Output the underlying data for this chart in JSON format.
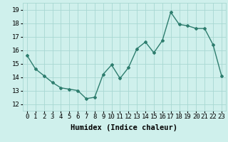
{
  "x": [
    0,
    1,
    2,
    3,
    4,
    5,
    6,
    7,
    8,
    9,
    10,
    11,
    12,
    13,
    14,
    15,
    16,
    17,
    18,
    19,
    20,
    21,
    22,
    23
  ],
  "y": [
    15.6,
    14.6,
    14.1,
    13.6,
    13.2,
    13.1,
    13.0,
    12.4,
    12.5,
    14.2,
    14.9,
    13.9,
    14.7,
    16.1,
    16.6,
    15.8,
    16.7,
    18.8,
    17.9,
    17.8,
    17.6,
    17.6,
    16.4,
    14.1
  ],
  "line_color": "#2e7d6e",
  "marker": "D",
  "marker_size": 2,
  "bg_color": "#cff0ec",
  "grid_color": "#a8d8d2",
  "xlabel": "Humidex (Indice chaleur)",
  "ylim": [
    11.5,
    19.5
  ],
  "xlim": [
    -0.5,
    23.5
  ],
  "yticks": [
    12,
    13,
    14,
    15,
    16,
    17,
    18,
    19
  ],
  "xticks": [
    0,
    1,
    2,
    3,
    4,
    5,
    6,
    7,
    8,
    9,
    10,
    11,
    12,
    13,
    14,
    15,
    16,
    17,
    18,
    19,
    20,
    21,
    22,
    23
  ],
  "xtick_labels": [
    "0",
    "1",
    "2",
    "3",
    "4",
    "5",
    "6",
    "7",
    "8",
    "9",
    "10",
    "11",
    "12",
    "13",
    "14",
    "15",
    "16",
    "17",
    "18",
    "19",
    "20",
    "21",
    "22",
    "23"
  ],
  "xlabel_fontsize": 7.5,
  "tick_fontsize": 6.5,
  "linewidth": 1.0
}
